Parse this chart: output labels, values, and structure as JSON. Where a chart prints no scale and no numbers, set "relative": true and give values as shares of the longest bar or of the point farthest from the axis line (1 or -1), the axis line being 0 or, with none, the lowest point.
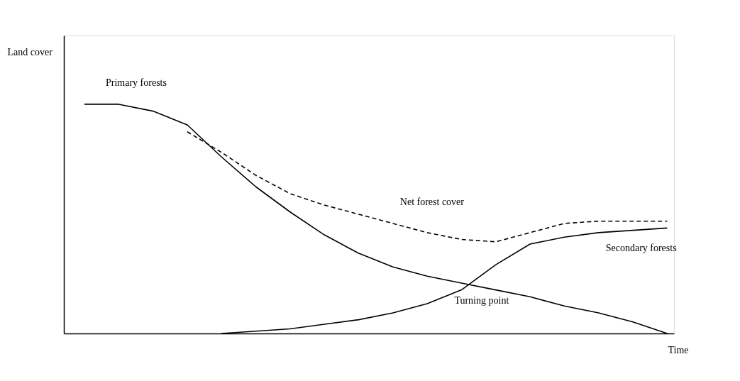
{
  "chart_data": {
    "type": "line",
    "relative": true,
    "xlabel": "Time",
    "ylabel": "Land cover",
    "grid": false,
    "marker": "none",
    "categories": [
      null,
      null,
      null,
      null,
      null,
      null,
      null,
      null,
      null,
      null,
      null,
      null,
      null,
      null,
      null,
      null,
      null,
      null
    ],
    "series": [
      {
        "name": "Primary forests",
        "color": "#000000",
        "line_style": "solid",
        "values": [
          1.0,
          1.0,
          0.97,
          0.91,
          0.77,
          0.64,
          0.53,
          0.43,
          0.35,
          0.29,
          0.25,
          0.22,
          0.19,
          0.16,
          0.12,
          0.09,
          0.05,
          0.0
        ]
      },
      {
        "name": "Net forest cover",
        "color": "#000000",
        "line_style": "dashed",
        "values": [
          null,
          null,
          null,
          0.88,
          0.79,
          0.69,
          0.61,
          0.56,
          0.52,
          0.48,
          0.44,
          0.41,
          0.4,
          0.44,
          0.48,
          0.49,
          0.49,
          0.49
        ]
      },
      {
        "name": "Secondary forests",
        "color": "#000000",
        "line_style": "solid",
        "values": [
          null,
          null,
          null,
          null,
          0.0,
          0.01,
          0.02,
          0.04,
          0.06,
          0.09,
          0.13,
          0.19,
          0.3,
          0.39,
          0.42,
          0.44,
          0.45,
          0.46
        ]
      }
    ],
    "annotations": [
      "Turning point"
    ]
  }
}
